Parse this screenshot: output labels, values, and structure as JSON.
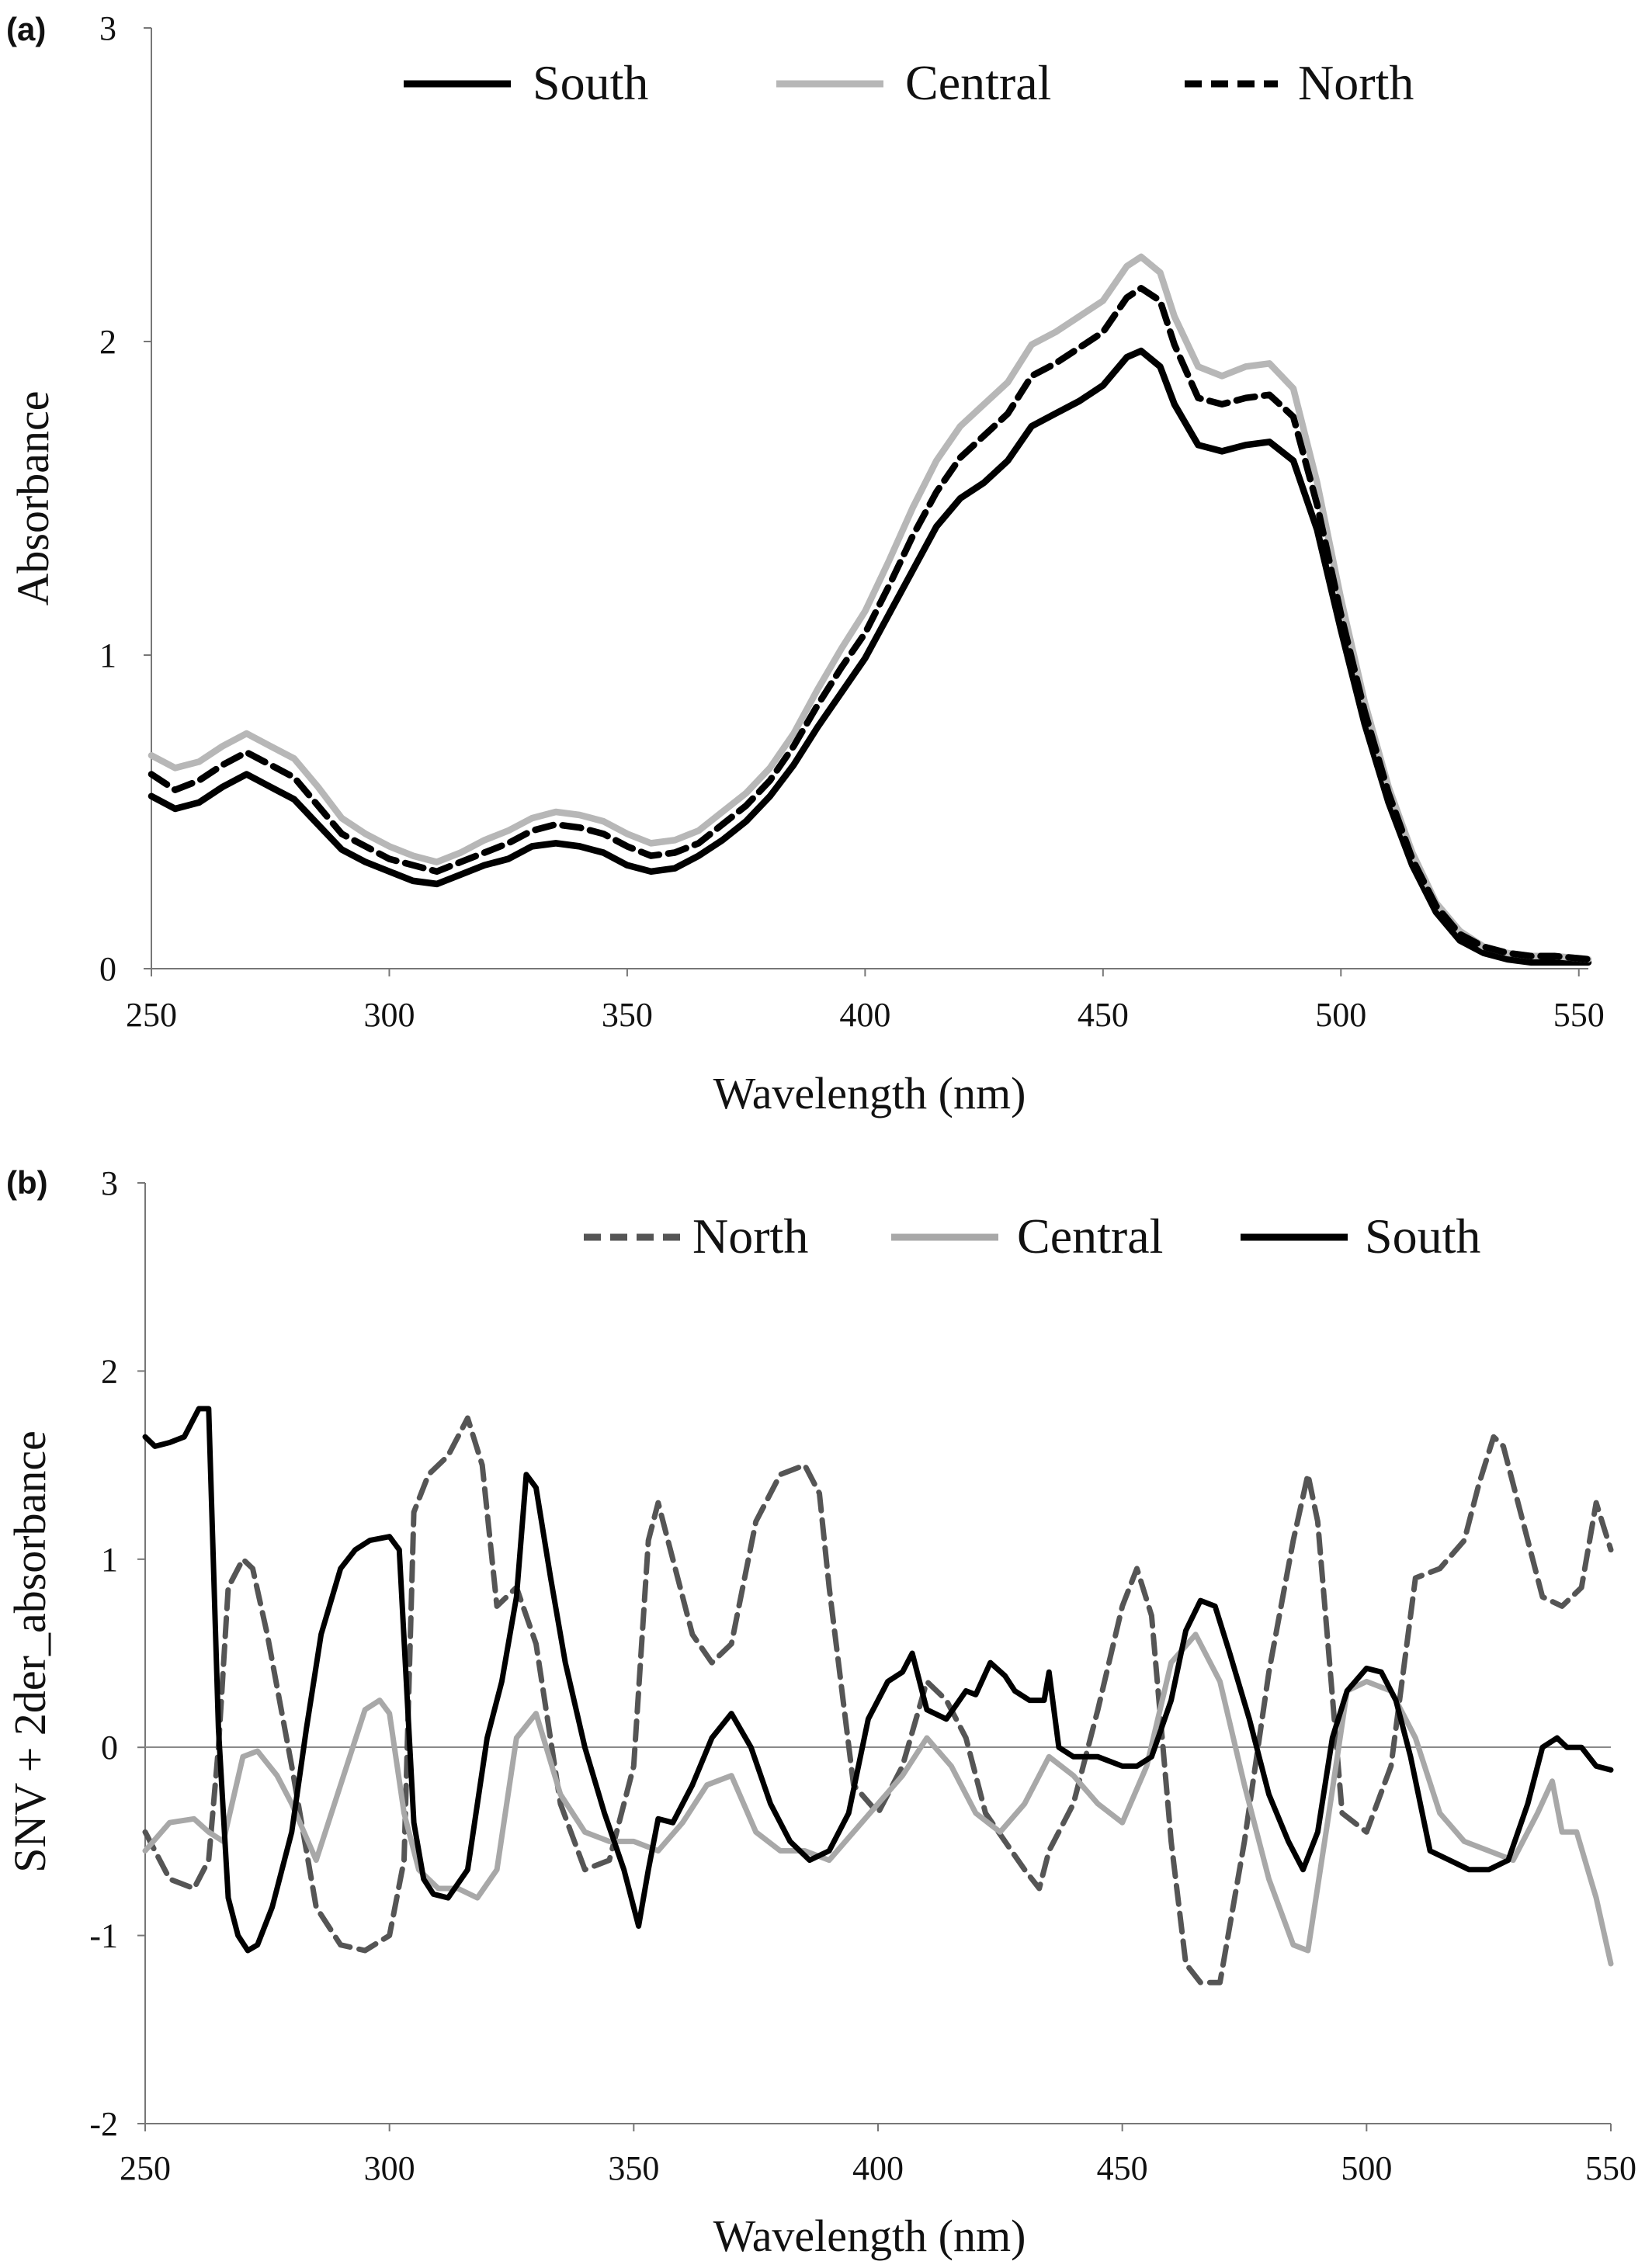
{
  "chart_data": [
    {
      "type": "line",
      "panel_label": "(a)",
      "title": "",
      "xlabel": "Wavelength (nm)",
      "ylabel": "Absorbance",
      "xlim": [
        250,
        552
      ],
      "ylim": [
        0,
        3
      ],
      "xticks": [
        250,
        300,
        350,
        400,
        450,
        500,
        550
      ],
      "yticks": [
        0,
        1,
        2,
        3
      ],
      "legend": {
        "placement": "top",
        "order": [
          "South",
          "Central",
          "North"
        ]
      },
      "series": [
        {
          "name": "South",
          "color": "#000000",
          "style": "solid",
          "x": [
            250,
            255,
            260,
            265,
            270,
            275,
            280,
            285,
            290,
            295,
            300,
            305,
            310,
            315,
            320,
            325,
            330,
            335,
            340,
            345,
            350,
            355,
            360,
            365,
            370,
            375,
            380,
            385,
            390,
            395,
            400,
            405,
            410,
            415,
            420,
            425,
            430,
            435,
            440,
            445,
            450,
            455,
            458,
            462,
            465,
            470,
            475,
            480,
            485,
            490,
            495,
            500,
            505,
            510,
            515,
            520,
            525,
            530,
            535,
            540,
            545,
            552
          ],
          "y": [
            0.55,
            0.51,
            0.53,
            0.58,
            0.62,
            0.58,
            0.54,
            0.46,
            0.38,
            0.34,
            0.31,
            0.28,
            0.27,
            0.3,
            0.33,
            0.35,
            0.39,
            0.4,
            0.39,
            0.37,
            0.33,
            0.31,
            0.32,
            0.36,
            0.41,
            0.47,
            0.55,
            0.65,
            0.77,
            0.88,
            0.99,
            1.13,
            1.27,
            1.41,
            1.5,
            1.55,
            1.62,
            1.73,
            1.77,
            1.81,
            1.86,
            1.95,
            1.97,
            1.92,
            1.8,
            1.67,
            1.65,
            1.67,
            1.68,
            1.62,
            1.4,
            1.08,
            0.78,
            0.53,
            0.33,
            0.18,
            0.09,
            0.05,
            0.03,
            0.02,
            0.02,
            0.02
          ]
        },
        {
          "name": "Central",
          "color": "#b7b7b7",
          "style": "solid",
          "x": [
            250,
            255,
            260,
            265,
            270,
            275,
            280,
            285,
            290,
            295,
            300,
            305,
            310,
            315,
            320,
            325,
            330,
            335,
            340,
            345,
            350,
            355,
            360,
            365,
            370,
            375,
            380,
            385,
            390,
            395,
            400,
            405,
            410,
            415,
            420,
            425,
            430,
            435,
            440,
            445,
            450,
            455,
            458,
            462,
            465,
            470,
            475,
            480,
            485,
            490,
            495,
            500,
            505,
            510,
            515,
            520,
            525,
            530,
            535,
            540,
            545,
            552
          ],
          "y": [
            0.68,
            0.64,
            0.66,
            0.71,
            0.75,
            0.71,
            0.67,
            0.58,
            0.48,
            0.43,
            0.39,
            0.36,
            0.34,
            0.37,
            0.41,
            0.44,
            0.48,
            0.5,
            0.49,
            0.47,
            0.43,
            0.4,
            0.41,
            0.44,
            0.5,
            0.56,
            0.64,
            0.75,
            0.89,
            1.02,
            1.14,
            1.3,
            1.47,
            1.62,
            1.73,
            1.8,
            1.87,
            1.99,
            2.03,
            2.08,
            2.13,
            2.24,
            2.27,
            2.22,
            2.08,
            1.92,
            1.89,
            1.92,
            1.93,
            1.85,
            1.55,
            1.18,
            0.85,
            0.58,
            0.37,
            0.21,
            0.12,
            0.07,
            0.05,
            0.04,
            0.04,
            0.03
          ]
        },
        {
          "name": "North",
          "color": "#000000",
          "style": "dashed",
          "x": [
            250,
            255,
            260,
            265,
            270,
            275,
            280,
            285,
            290,
            295,
            300,
            305,
            310,
            315,
            320,
            325,
            330,
            335,
            340,
            345,
            350,
            355,
            360,
            365,
            370,
            375,
            380,
            385,
            390,
            395,
            400,
            405,
            410,
            415,
            420,
            425,
            430,
            435,
            440,
            445,
            450,
            455,
            458,
            462,
            465,
            470,
            475,
            480,
            485,
            490,
            495,
            500,
            505,
            510,
            515,
            520,
            525,
            530,
            535,
            540,
            545,
            552
          ],
          "y": [
            0.62,
            0.57,
            0.6,
            0.65,
            0.69,
            0.65,
            0.61,
            0.52,
            0.43,
            0.39,
            0.35,
            0.33,
            0.31,
            0.34,
            0.37,
            0.4,
            0.44,
            0.46,
            0.45,
            0.43,
            0.39,
            0.36,
            0.37,
            0.4,
            0.46,
            0.52,
            0.6,
            0.71,
            0.84,
            0.96,
            1.07,
            1.22,
            1.38,
            1.52,
            1.63,
            1.7,
            1.77,
            1.89,
            1.93,
            1.98,
            2.03,
            2.14,
            2.17,
            2.13,
            1.99,
            1.82,
            1.8,
            1.82,
            1.83,
            1.76,
            1.48,
            1.13,
            0.82,
            0.56,
            0.35,
            0.2,
            0.11,
            0.07,
            0.05,
            0.04,
            0.04,
            0.03
          ]
        }
      ]
    },
    {
      "type": "line",
      "panel_label": "(b)",
      "title": "",
      "xlabel": "Wavelength (nm)",
      "ylabel": "SNV + 2der_absorbance",
      "xlim": [
        250,
        550
      ],
      "ylim": [
        -2,
        3
      ],
      "xticks": [
        250,
        300,
        350,
        400,
        450,
        500,
        550
      ],
      "yticks": [
        -2,
        -1,
        0,
        1,
        2,
        3
      ],
      "legend": {
        "placement": "top",
        "order": [
          "North",
          "Central",
          "South"
        ]
      },
      "series": [
        {
          "name": "North",
          "color": "#555555",
          "style": "dashed",
          "x": [
            250,
            255,
            260,
            263,
            265,
            267,
            270,
            272,
            275,
            280,
            285,
            290,
            295,
            300,
            303,
            305,
            308,
            312,
            316,
            319,
            322,
            326,
            330,
            335,
            340,
            345,
            350,
            353,
            355,
            358,
            362,
            366,
            370,
            375,
            380,
            385,
            388,
            390,
            395,
            400,
            405,
            410,
            414,
            418,
            422,
            426,
            430,
            433,
            435,
            440,
            445,
            450,
            453,
            456,
            460,
            463,
            466,
            470,
            475,
            480,
            485,
            488,
            490,
            495,
            500,
            505,
            510,
            515,
            520,
            523,
            526,
            528,
            532,
            536,
            540,
            544,
            547,
            550
          ],
          "y": [
            -0.45,
            -0.7,
            -0.75,
            -0.6,
            0.0,
            0.85,
            1.0,
            0.95,
            0.6,
            -0.1,
            -0.85,
            -1.05,
            -1.08,
            -1.0,
            -0.6,
            1.25,
            1.45,
            1.55,
            1.75,
            1.5,
            0.75,
            0.85,
            0.55,
            -0.3,
            -0.65,
            -0.6,
            -0.1,
            1.1,
            1.3,
            1.0,
            0.6,
            0.45,
            0.55,
            1.2,
            1.45,
            1.5,
            1.35,
            0.85,
            -0.2,
            -0.35,
            -0.1,
            0.35,
            0.25,
            0.05,
            -0.35,
            -0.5,
            -0.65,
            -0.75,
            -0.55,
            -0.3,
            0.2,
            0.75,
            0.95,
            0.7,
            -0.5,
            -1.15,
            -1.25,
            -1.25,
            -0.5,
            0.4,
            1.1,
            1.45,
            1.2,
            -0.35,
            -0.45,
            -0.1,
            0.9,
            0.95,
            1.1,
            1.4,
            1.65,
            1.6,
            1.2,
            0.8,
            0.75,
            0.85,
            1.3,
            1.05
          ]
        },
        {
          "name": "Central",
          "color": "#a8a8a8",
          "style": "solid",
          "x": [
            250,
            255,
            260,
            263,
            266,
            270,
            273,
            277,
            280,
            285,
            290,
            295,
            298,
            300,
            303,
            306,
            310,
            314,
            318,
            322,
            326,
            330,
            335,
            340,
            345,
            350,
            355,
            360,
            365,
            370,
            375,
            380,
            385,
            390,
            395,
            400,
            405,
            410,
            415,
            420,
            425,
            430,
            435,
            440,
            445,
            450,
            455,
            460,
            465,
            470,
            475,
            480,
            485,
            488,
            492,
            496,
            500,
            505,
            510,
            515,
            520,
            525,
            530,
            535,
            538,
            540,
            543,
            547,
            550
          ],
          "y": [
            -0.55,
            -0.4,
            -0.38,
            -0.45,
            -0.5,
            -0.05,
            -0.02,
            -0.15,
            -0.3,
            -0.6,
            -0.2,
            0.2,
            0.25,
            0.18,
            -0.35,
            -0.65,
            -0.75,
            -0.75,
            -0.8,
            -0.65,
            0.05,
            0.18,
            -0.25,
            -0.45,
            -0.5,
            -0.5,
            -0.55,
            -0.4,
            -0.2,
            -0.15,
            -0.45,
            -0.55,
            -0.55,
            -0.6,
            -0.45,
            -0.3,
            -0.15,
            0.05,
            -0.1,
            -0.35,
            -0.45,
            -0.3,
            -0.05,
            -0.15,
            -0.3,
            -0.4,
            -0.1,
            0.45,
            0.6,
            0.35,
            -0.2,
            -0.7,
            -1.05,
            -1.08,
            -0.4,
            0.3,
            0.35,
            0.3,
            0.05,
            -0.35,
            -0.5,
            -0.55,
            -0.6,
            -0.35,
            -0.18,
            -0.45,
            -0.45,
            -0.8,
            -1.15
          ]
        },
        {
          "name": "South",
          "color": "#000000",
          "style": "solid",
          "x": [
            250,
            252,
            255,
            258,
            261,
            263,
            265,
            267,
            269,
            271,
            273,
            276,
            280,
            283,
            286,
            290,
            293,
            296,
            300,
            302,
            305,
            307,
            309,
            312,
            316,
            320,
            323,
            326,
            328,
            330,
            333,
            336,
            340,
            344,
            348,
            351,
            353,
            355,
            358,
            362,
            366,
            370,
            374,
            378,
            382,
            386,
            390,
            394,
            398,
            402,
            405,
            407,
            410,
            414,
            418,
            420,
            423,
            426,
            428,
            431,
            434,
            435,
            437,
            440,
            445,
            450,
            453,
            456,
            460,
            463,
            466,
            469,
            472,
            476,
            480,
            484,
            487,
            490,
            493,
            496,
            500,
            503,
            506,
            509,
            513,
            517,
            521,
            525,
            529,
            533,
            536,
            539,
            541,
            544,
            547,
            550
          ],
          "y": [
            1.65,
            1.6,
            1.62,
            1.65,
            1.8,
            1.8,
            0.1,
            -0.8,
            -1.0,
            -1.08,
            -1.05,
            -0.85,
            -0.45,
            0.1,
            0.6,
            0.95,
            1.05,
            1.1,
            1.12,
            1.05,
            -0.4,
            -0.7,
            -0.78,
            -0.8,
            -0.65,
            0.05,
            0.35,
            0.8,
            1.45,
            1.38,
            0.9,
            0.45,
            0.0,
            -0.35,
            -0.65,
            -0.95,
            -0.65,
            -0.38,
            -0.4,
            -0.2,
            0.05,
            0.18,
            0.0,
            -0.3,
            -0.5,
            -0.6,
            -0.55,
            -0.35,
            0.15,
            0.35,
            0.4,
            0.5,
            0.2,
            0.15,
            0.3,
            0.28,
            0.45,
            0.38,
            0.3,
            0.25,
            0.25,
            0.4,
            0.0,
            -0.05,
            -0.05,
            -0.1,
            -0.1,
            -0.05,
            0.25,
            0.62,
            0.78,
            0.75,
            0.5,
            0.15,
            -0.25,
            -0.5,
            -0.65,
            -0.45,
            0.05,
            0.3,
            0.42,
            0.4,
            0.25,
            -0.05,
            -0.55,
            -0.6,
            -0.65,
            -0.65,
            -0.6,
            -0.3,
            0.0,
            0.05,
            0.0,
            0.0,
            -0.1,
            -0.12
          ]
        }
      ]
    }
  ]
}
